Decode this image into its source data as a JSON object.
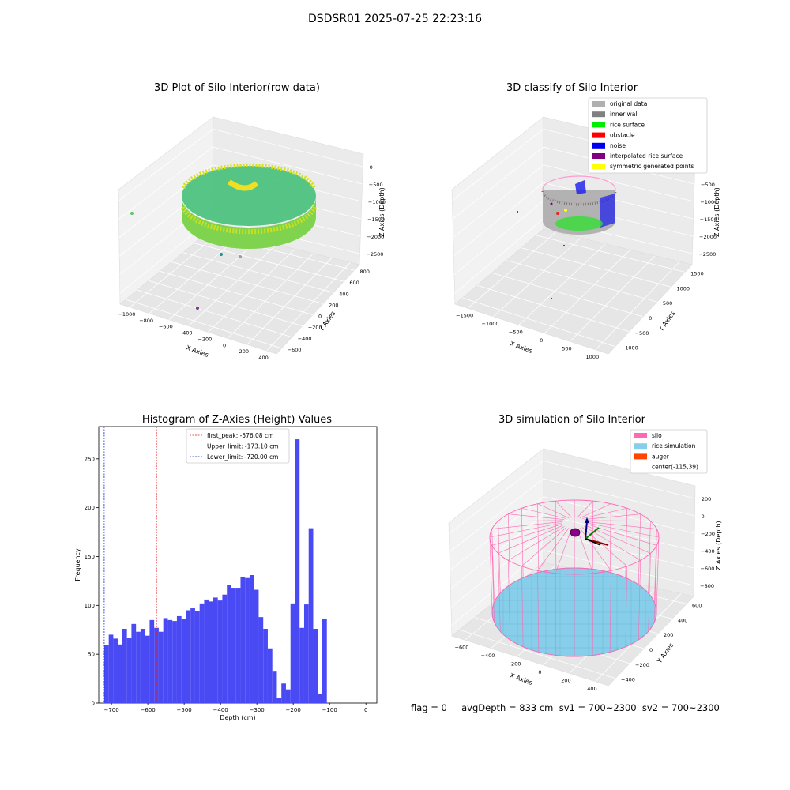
{
  "suptitle": "DSDSR01 2025-07-25 22:23:16",
  "charts": [
    {
      "type": "scatter",
      "title": "3D Plot of Silo Interior(row data)",
      "xlabel": "X Axies",
      "ylabel": "Y Axies",
      "zlabel": "Z Axies (Depth)",
      "x_ticks": [
        "−1000",
        "−800",
        "−600",
        "−400",
        "−200",
        "0",
        "200",
        "400"
      ],
      "y_ticks": [
        "−600",
        "−400",
        "−200",
        "0",
        "200",
        "400",
        "600",
        "800"
      ],
      "z_ticks": [
        "0",
        "−500",
        "−1000",
        "−1500",
        "−2000",
        "−2500"
      ],
      "colormap": [
        "#44015a",
        "#3b528b",
        "#21918c",
        "#5ec962",
        "#fde725"
      ]
    },
    {
      "type": "scatter",
      "title": "3D classify of Silo Interior",
      "xlabel": "X Axies",
      "ylabel": "Y Axies",
      "zlabel": "Z Axies (Depth)",
      "x_ticks": [
        "−1500",
        "−1000",
        "−500",
        "0",
        "500",
        "1000"
      ],
      "y_ticks": [
        "−1000",
        "−500",
        "0",
        "500",
        "1000",
        "1500"
      ],
      "z_ticks": [
        "0",
        "−500",
        "−1000",
        "−1500",
        "−2000",
        "−2500"
      ],
      "legend": [
        {
          "label": "original data",
          "color": "#b0b0b0"
        },
        {
          "label": "inner wall",
          "color": "#808080"
        },
        {
          "label": "rice surface",
          "color": "#00ee00"
        },
        {
          "label": "obstacle",
          "color": "#ff0000"
        },
        {
          "label": "noise",
          "color": "#0000ee"
        },
        {
          "label": "interpolated rice surface",
          "color": "#800080"
        },
        {
          "label": "symmetric generated points",
          "color": "#ffff00"
        }
      ],
      "legend_position": "top-right"
    },
    {
      "type": "bar",
      "title": "Histogram of Z-Axies (Height) Values",
      "xlabel": "Depth (cm)",
      "ylabel": "Frequency",
      "xlim": [
        -735,
        30
      ],
      "ylim": [
        0,
        283
      ],
      "x_ticks": [
        -700,
        -600,
        -500,
        -400,
        -300,
        -200,
        -100,
        0
      ],
      "y_ticks": [
        0,
        50,
        100,
        150,
        200,
        250
      ],
      "bin_start": -720,
      "bin_width": 12.5,
      "values": [
        59,
        70,
        66,
        60,
        76,
        67,
        81,
        73,
        76,
        69,
        85,
        77,
        73,
        87,
        85,
        84,
        89,
        86,
        95,
        97,
        94,
        102,
        106,
        104,
        108,
        105,
        111,
        121,
        118,
        118,
        129,
        128,
        131,
        116,
        88,
        76,
        56,
        33,
        5,
        20,
        14,
        102,
        270,
        77,
        101,
        179,
        76,
        9,
        86
      ],
      "bar_color": "#4a4af5",
      "lines": [
        {
          "x": -576.08,
          "color": "#e02020",
          "label": "first_peak: -576.08 cm"
        },
        {
          "x": -173.1,
          "color": "#1030d0",
          "label": "Upper_limit: -173.10 cm"
        },
        {
          "x": -720.0,
          "color": "#1030d0",
          "label": "Lower_limit: -720.00 cm"
        }
      ],
      "legend_position": "top-center"
    },
    {
      "type": "scatter",
      "title": "3D simulation of Silo Interior",
      "xlabel": "X Axies",
      "ylabel": "Y Axies",
      "zlabel": "Z Axies (Depth)",
      "x_ticks": [
        "−600",
        "−400",
        "−200",
        "0",
        "200",
        "400"
      ],
      "y_ticks": [
        "−400",
        "−200",
        "0",
        "200",
        "400",
        "600"
      ],
      "z_ticks": [
        "200",
        "0",
        "−200",
        "−400",
        "−600",
        "−800"
      ],
      "legend": [
        {
          "label": "silo",
          "color": "#ff69b4"
        },
        {
          "label": "rice simulation",
          "color": "#87ceeb"
        },
        {
          "label": "auger",
          "color": "#ff4500"
        },
        {
          "label": "center(-115,39)",
          "color": ""
        }
      ],
      "legend_position": "top-right"
    }
  ],
  "status": "flag = 0     avgDepth = 833 cm  sv1 = 700~2300  sv2 = 700~2300"
}
